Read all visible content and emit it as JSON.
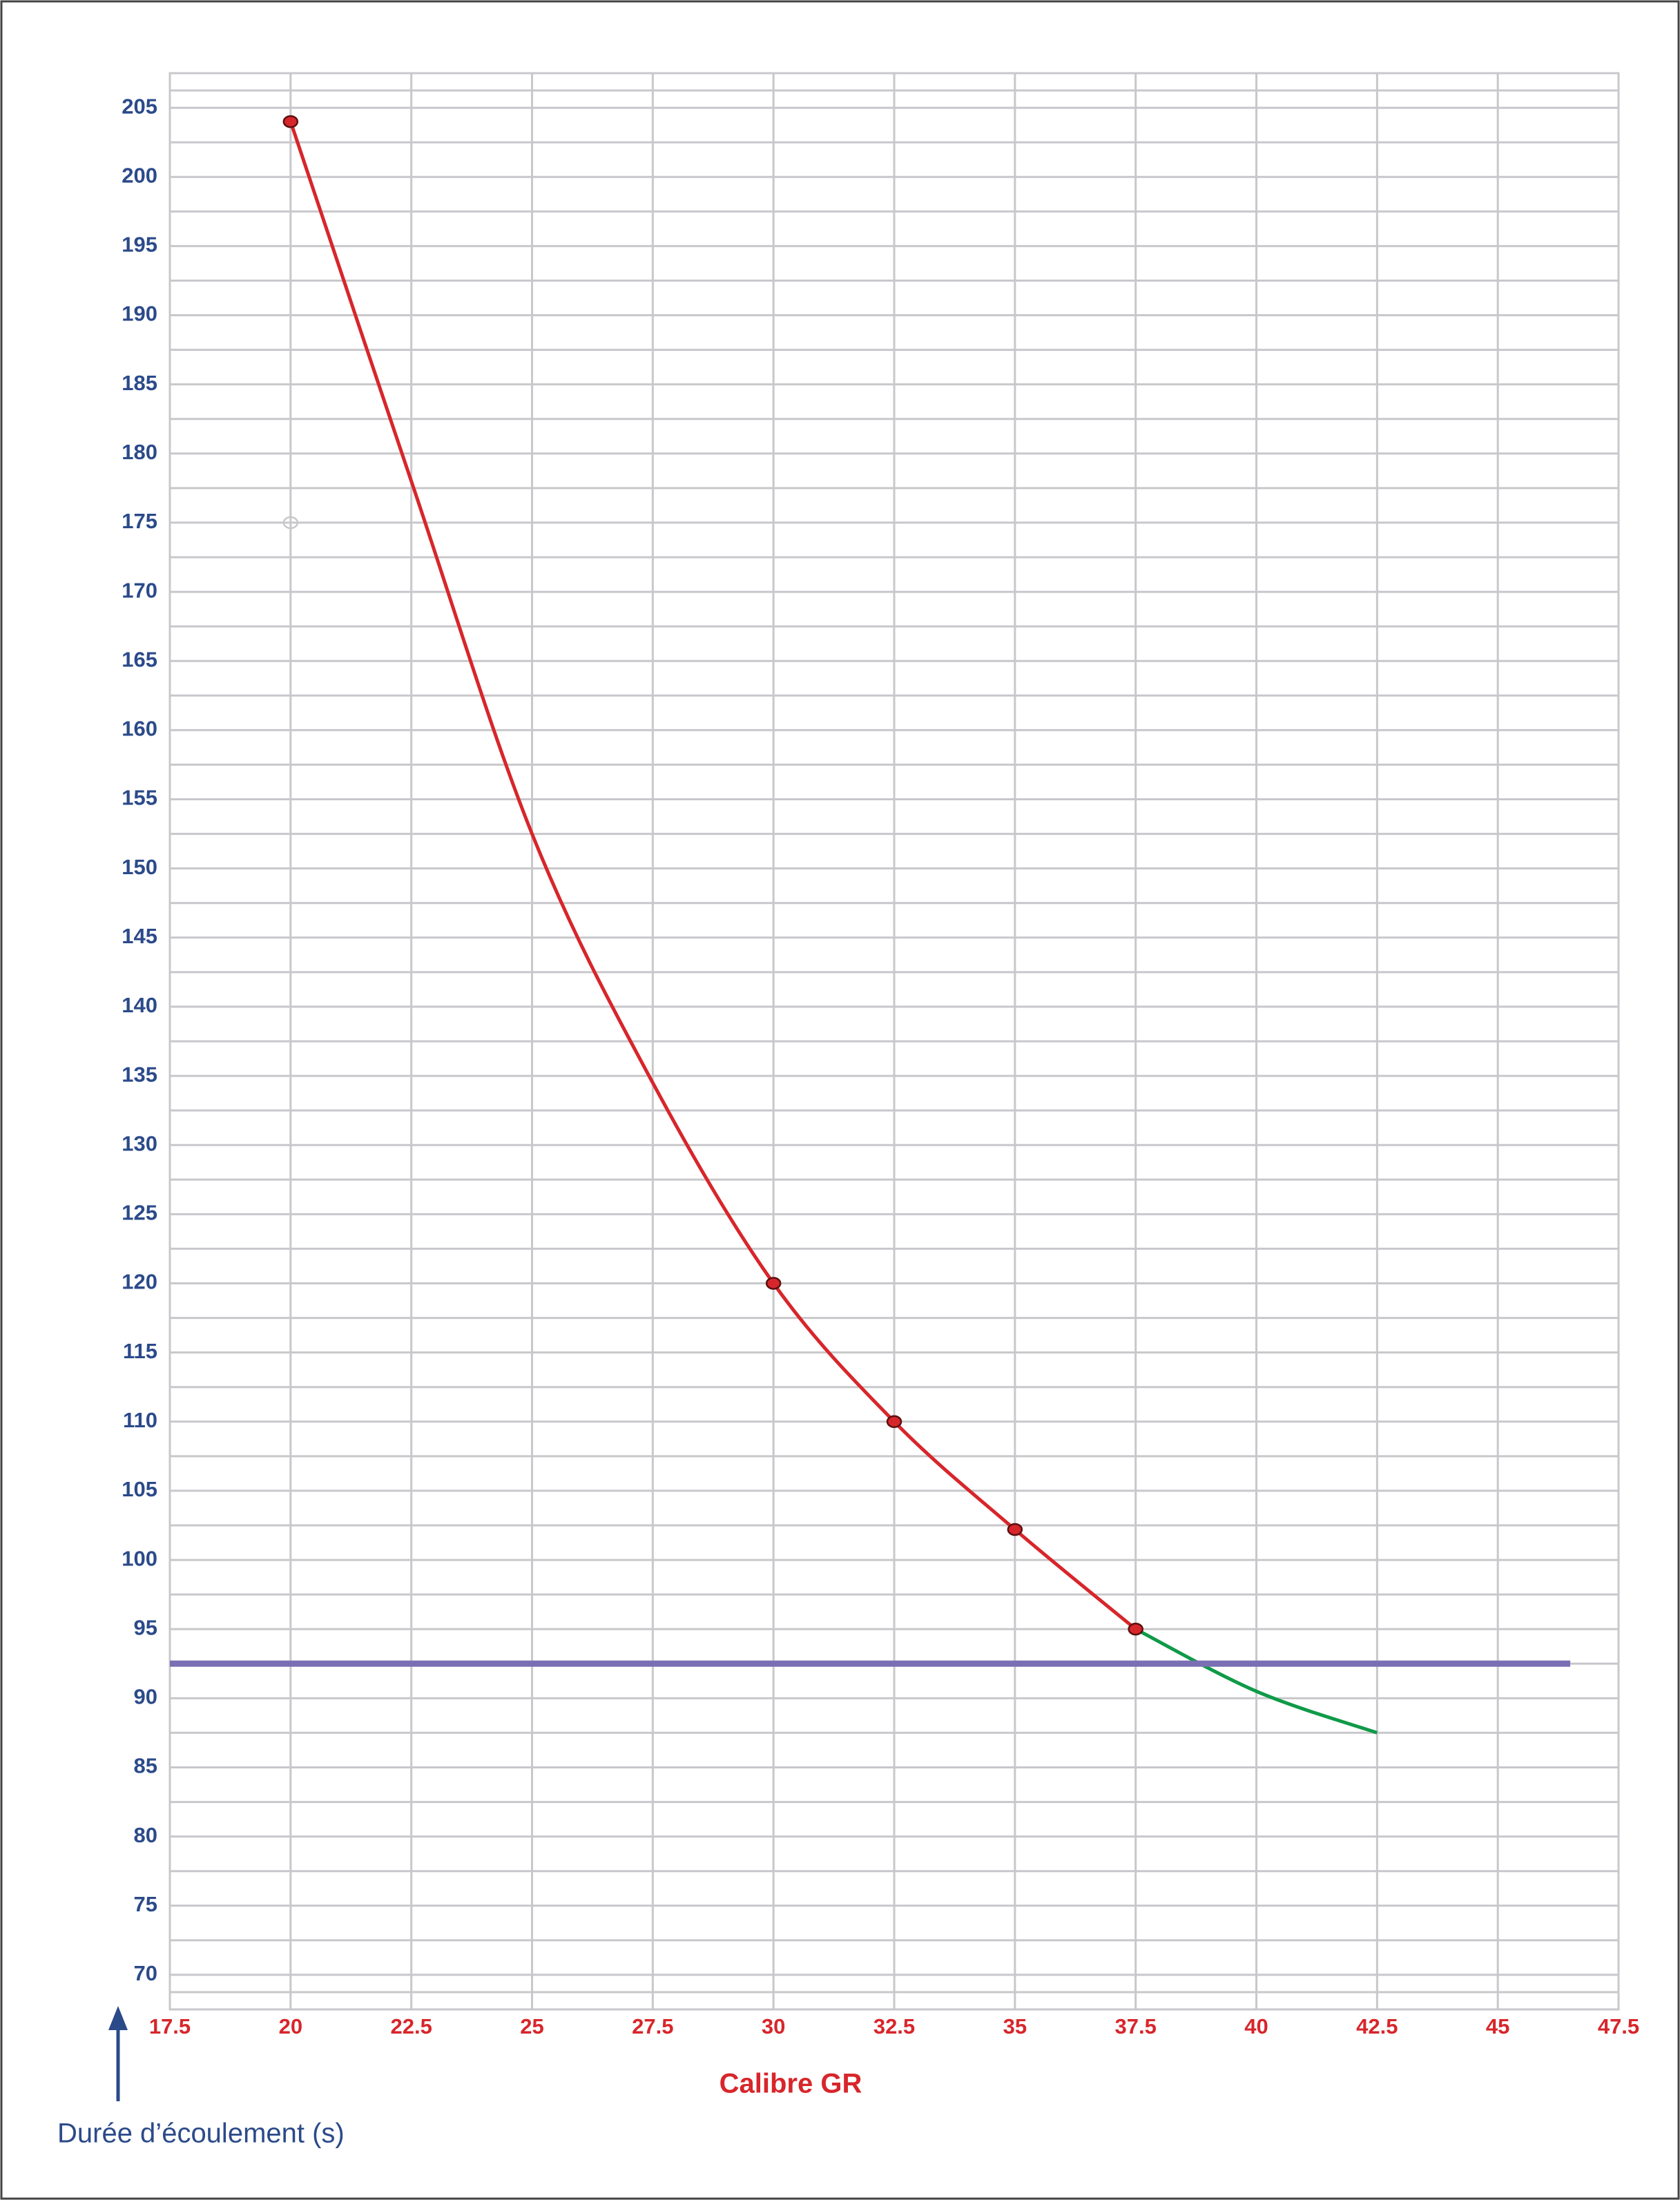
{
  "chart_data": {
    "type": "line",
    "xlabel": "Calibre GR",
    "ylabel": "Durée d’écoulement (s)",
    "xlim": [
      17.5,
      47.5
    ],
    "xticks": [
      17.5,
      20,
      22.5,
      25,
      27.5,
      30,
      32.5,
      35,
      37.5,
      40,
      42.5,
      45,
      47.5
    ],
    "ylim": [
      67.5,
      207.5
    ],
    "yticks": [
      70,
      75,
      80,
      85,
      90,
      95,
      100,
      105,
      110,
      115,
      120,
      125,
      130,
      135,
      140,
      145,
      150,
      155,
      160,
      165,
      170,
      175,
      180,
      185,
      190,
      195,
      200,
      205
    ],
    "grid": true,
    "series": [
      {
        "color": "#d7262b",
        "style": "curve",
        "x": [
          20,
          22.5,
          25,
          27.5,
          30,
          32.5,
          35,
          37.5
        ],
        "values": [
          204,
          178,
          152.5,
          134.5,
          120,
          110,
          102.2,
          95
        ]
      },
      {
        "color": "#0f9a48",
        "style": "curve",
        "x": [
          37.5,
          40,
          42.5
        ],
        "values": [
          95,
          90.5,
          87.5
        ]
      },
      {
        "color": "#7b6fb3",
        "style": "line",
        "x": [
          17.5,
          46.5
        ],
        "values": [
          92.5,
          92.5
        ]
      },
      {
        "color": "#d7262b",
        "style": "points",
        "x": [
          20,
          30,
          32.5,
          35,
          37.5
        ],
        "values": [
          204,
          120,
          110,
          102.2,
          95
        ]
      },
      {
        "color": "#c8c8c8",
        "style": "hollow",
        "x": [
          20
        ],
        "values": [
          175
        ]
      }
    ]
  }
}
